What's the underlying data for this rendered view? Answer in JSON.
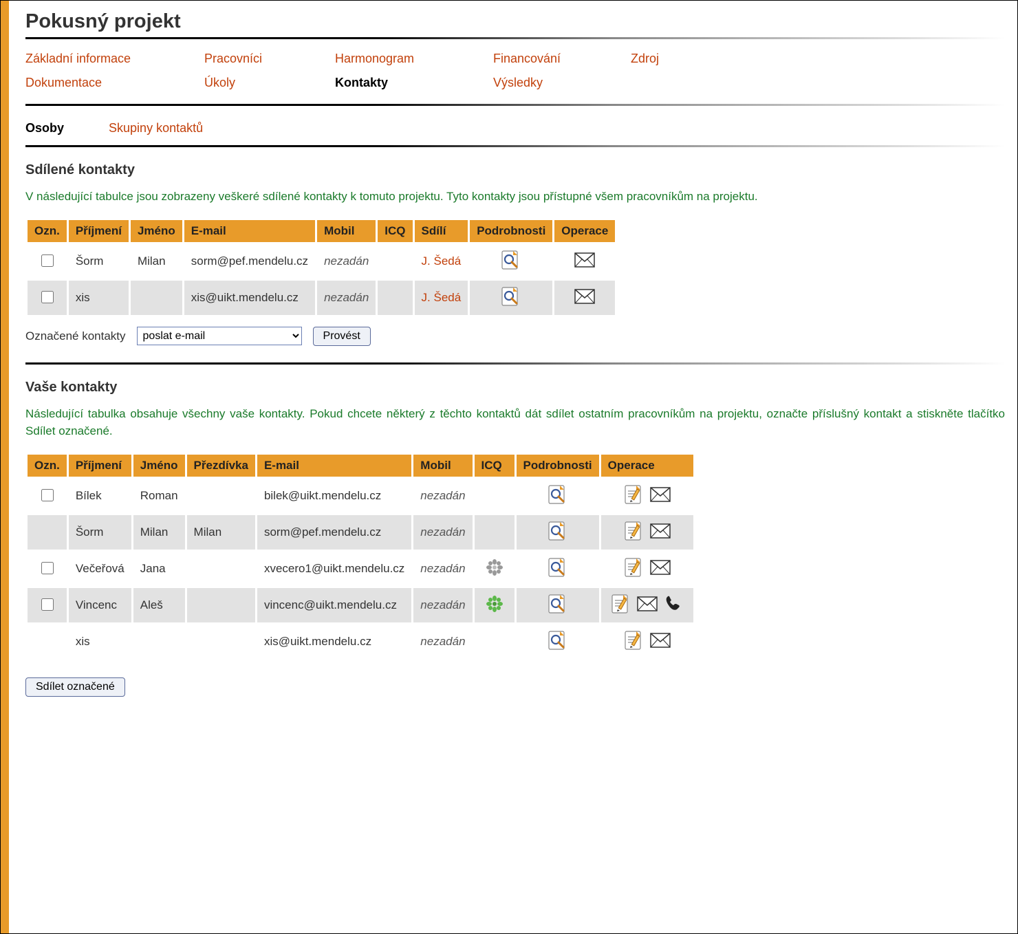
{
  "colors": {
    "accent": "#e89b2a",
    "link": "#c2410c",
    "descText": "#1a7a2a",
    "rowOdd": "#ffffff",
    "rowEven": "#e2e2e2",
    "background": "#ffffff"
  },
  "pageTitle": "Pokusný projekt",
  "nav": {
    "row1": [
      {
        "label": "Základní informace",
        "active": false
      },
      {
        "label": "Pracovníci",
        "active": false
      },
      {
        "label": "Harmonogram",
        "active": false
      },
      {
        "label": "Financování",
        "active": false
      },
      {
        "label": "Zdroj",
        "active": false
      }
    ],
    "row2": [
      {
        "label": "Dokumentace",
        "active": false
      },
      {
        "label": "Úkoly",
        "active": false
      },
      {
        "label": "Kontakty",
        "active": true
      },
      {
        "label": "Výsledky",
        "active": false
      }
    ]
  },
  "subnav": [
    {
      "label": "Osoby",
      "active": true
    },
    {
      "label": "Skupiny kontaktů",
      "active": false
    }
  ],
  "shared": {
    "title": "Sdílené kontakty",
    "desc": "V následující tabulce jsou zobrazeny veškeré sdílené kontakty k tomuto projektu. Tyto kontakty jsou přístupné všem pracovníkům na projektu.",
    "columns": [
      "Ozn.",
      "Příjmení",
      "Jméno",
      "E-mail",
      "Mobil",
      "ICQ",
      "Sdílí",
      "Podrobnosti",
      "Operace"
    ],
    "rows": [
      {
        "checked": false,
        "surname": "Šorm",
        "firstname": "Milan",
        "email": "sorm@pef.mendelu.cz",
        "mobile": "nezadán",
        "icq": "",
        "sharedBy": "J. Šedá"
      },
      {
        "checked": false,
        "surname": "xis",
        "firstname": "",
        "email": "xis@uikt.mendelu.cz",
        "mobile": "nezadán",
        "icq": "",
        "sharedBy": "J. Šedá"
      }
    ],
    "actionLabel": "Označené kontakty",
    "selectValue": "poslat e-mail",
    "buttonLabel": "Provést"
  },
  "own": {
    "title": "Vaše kontakty",
    "desc": "Následující tabulka obsahuje všechny vaše kontakty. Pokud chcete některý z těchto kontaktů dát sdílet ostatním pracovníkům na projektu, označte příslušný kontakt a stiskněte tlačítko Sdílet označené.",
    "columns": [
      "Ozn.",
      "Příjmení",
      "Jméno",
      "Přezdívka",
      "E-mail",
      "Mobil",
      "ICQ",
      "Podrobnosti",
      "Operace"
    ],
    "rows": [
      {
        "showCheck": true,
        "checked": false,
        "surname": "Bílek",
        "firstname": "Roman",
        "nickname": "",
        "email": "bilek@uikt.mendelu.cz",
        "mobile": "nezadán",
        "icq": "none",
        "ops": [
          "edit",
          "mail"
        ]
      },
      {
        "showCheck": false,
        "checked": false,
        "surname": "Šorm",
        "firstname": "Milan",
        "nickname": "Milan",
        "email": "sorm@pef.mendelu.cz",
        "mobile": "nezadán",
        "icq": "none",
        "ops": [
          "edit",
          "mail"
        ]
      },
      {
        "showCheck": true,
        "checked": false,
        "surname": "Večeřová",
        "firstname": "Jana",
        "nickname": "",
        "email": "xvecero1@uikt.mendelu.cz",
        "mobile": "nezadán",
        "icq": "grey",
        "ops": [
          "edit",
          "mail"
        ]
      },
      {
        "showCheck": true,
        "checked": false,
        "surname": "Vincenc",
        "firstname": "Aleš",
        "nickname": "",
        "email": "vincenc@uikt.mendelu.cz",
        "mobile": "nezadán",
        "icq": "green",
        "ops": [
          "edit",
          "mail",
          "phone"
        ]
      },
      {
        "showCheck": false,
        "checked": false,
        "surname": "xis",
        "firstname": "",
        "nickname": "",
        "email": "xis@uikt.mendelu.cz",
        "mobile": "nezadán",
        "icq": "none",
        "ops": [
          "edit",
          "mail"
        ]
      }
    ],
    "shareButton": "Sdílet označené"
  }
}
